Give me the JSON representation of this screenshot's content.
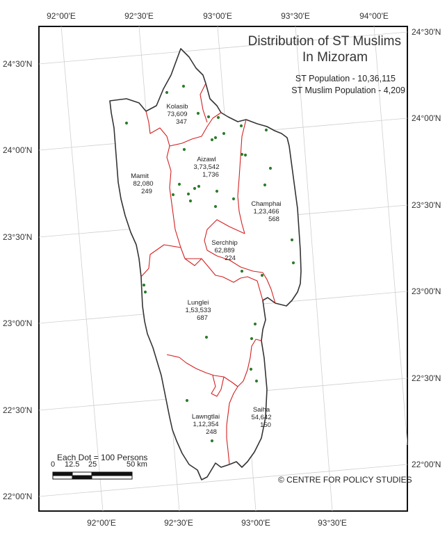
{
  "title": {
    "line1": "Distribution of ST Muslims",
    "line2": "In Mizoram"
  },
  "stats": {
    "st_population": "ST Population - 10,36,115",
    "st_muslim_population": "ST Muslim Population - 4,209"
  },
  "colors": {
    "state_boundary": "#333333",
    "district_boundary": "#d42020",
    "dot": "#2e7d2e",
    "graticule": "#cfcfcf"
  },
  "axis_labels": {
    "top": [
      "92°00'E",
      "92°30'E",
      "93°00'E",
      "93°30'E",
      "94°00'E"
    ],
    "bottom": [
      "92°00'E",
      "92°30'E",
      "93°00'E",
      "93°30'E"
    ],
    "left": [
      "24°30'N",
      "24°00'N",
      "23°30'N",
      "23°00'N",
      "22°30'N",
      "22°00'N"
    ],
    "right": [
      "24°30'N",
      "24°00'N",
      "23°30'N",
      "23°00'N",
      "22°30'N",
      "22°00'N"
    ]
  },
  "districts": [
    {
      "name": "Kolasib",
      "population": "73,609",
      "muslims": "347"
    },
    {
      "name": "Aizawl",
      "population": "3,73,542",
      "muslims": "1,736"
    },
    {
      "name": "Mamit",
      "population": "82,080",
      "muslims": "249"
    },
    {
      "name": "Champhai",
      "population": "1,23,466",
      "muslims": "568"
    },
    {
      "name": "Serchhip",
      "population": "62,889",
      "muslims": "224"
    },
    {
      "name": "Lunglei",
      "population": "1,53,533",
      "muslims": "687"
    },
    {
      "name": "Lawngtlai",
      "population": "1,12,354",
      "muslims": "248"
    },
    {
      "name": "Saiha",
      "population": "54,642",
      "muslims": "150"
    }
  ],
  "legend": {
    "dot_value": "Each Dot = 100 Persons",
    "scale_ticks": [
      "0",
      "12.5",
      "25",
      "50 km"
    ]
  },
  "credit": "© CENTRE FOR POLICY STUDIES"
}
